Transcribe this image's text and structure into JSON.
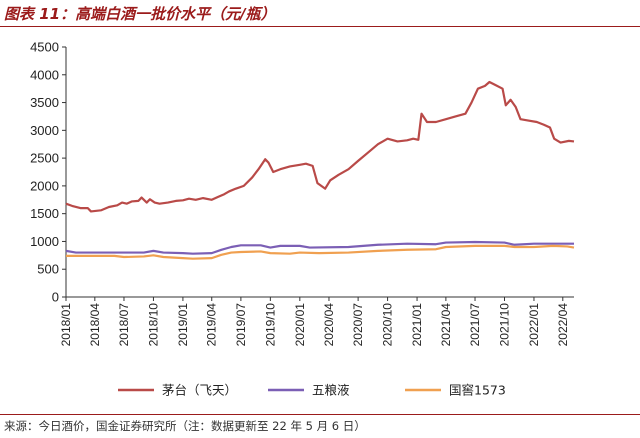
{
  "header": {
    "title": "图表 11：高端白酒一批价水平（元/瓶）"
  },
  "footer": {
    "source": "来源：今日酒价，国金证券研究所（注：数据更新至 22 年 5 月 6 日）"
  },
  "chart_data": {
    "type": "line",
    "title": "图表 11：高端白酒一批价水平（元/瓶）",
    "ylim": [
      0,
      4500
    ],
    "yticks": [
      0,
      500,
      1000,
      1500,
      2000,
      2500,
      3000,
      3500,
      4000,
      4500
    ],
    "xlim": [
      "2018-01-01",
      "2022-05-06"
    ],
    "xticks": [
      "2018/01",
      "2018/04",
      "2018/07",
      "2018/10",
      "2019/01",
      "2019/04",
      "2019/07",
      "2019/10",
      "2020/01",
      "2020/04",
      "2020/07",
      "2020/10",
      "2021/01",
      "2021/04",
      "2021/07",
      "2021/10",
      "2022/01",
      "2022/04"
    ],
    "legend": "bottom",
    "grid": false,
    "colors": {
      "series1": "#b94a48",
      "series2": "#7b5fb5",
      "series3": "#f0a050",
      "axis": "#333333",
      "accent": "#9b1b1b"
    },
    "series": [
      {
        "name": "茅台（飞天）",
        "points": [
          [
            "2018-01-01",
            1680
          ],
          [
            "2018-01-20",
            1640
          ],
          [
            "2018-02-15",
            1600
          ],
          [
            "2018-03-10",
            1600
          ],
          [
            "2018-03-20",
            1540
          ],
          [
            "2018-04-20",
            1560
          ],
          [
            "2018-05-15",
            1620
          ],
          [
            "2018-06-10",
            1650
          ],
          [
            "2018-06-25",
            1700
          ],
          [
            "2018-07-10",
            1680
          ],
          [
            "2018-07-25",
            1720
          ],
          [
            "2018-08-15",
            1730
          ],
          [
            "2018-08-25",
            1790
          ],
          [
            "2018-09-10",
            1700
          ],
          [
            "2018-09-20",
            1760
          ],
          [
            "2018-10-05",
            1700
          ],
          [
            "2018-10-20",
            1680
          ],
          [
            "2018-11-15",
            1700
          ],
          [
            "2018-12-10",
            1730
          ],
          [
            "2019-01-01",
            1740
          ],
          [
            "2019-01-20",
            1770
          ],
          [
            "2019-02-10",
            1750
          ],
          [
            "2019-03-05",
            1780
          ],
          [
            "2019-04-01",
            1750
          ],
          [
            "2019-04-20",
            1800
          ],
          [
            "2019-05-10",
            1850
          ],
          [
            "2019-05-25",
            1900
          ],
          [
            "2019-06-15",
            1950
          ],
          [
            "2019-07-10",
            2000
          ],
          [
            "2019-08-05",
            2150
          ],
          [
            "2019-08-25",
            2300
          ],
          [
            "2019-09-15",
            2480
          ],
          [
            "2019-09-25",
            2420
          ],
          [
            "2019-10-10",
            2250
          ],
          [
            "2019-11-01",
            2300
          ],
          [
            "2019-12-01",
            2350
          ],
          [
            "2020-01-01",
            2380
          ],
          [
            "2020-01-20",
            2400
          ],
          [
            "2020-02-10",
            2360
          ],
          [
            "2020-02-25",
            2050
          ],
          [
            "2020-03-20",
            1950
          ],
          [
            "2020-04-05",
            2100
          ],
          [
            "2020-05-01",
            2200
          ],
          [
            "2020-06-01",
            2300
          ],
          [
            "2020-07-01",
            2450
          ],
          [
            "2020-08-01",
            2600
          ],
          [
            "2020-09-01",
            2750
          ],
          [
            "2020-10-01",
            2850
          ],
          [
            "2020-11-01",
            2800
          ],
          [
            "2020-12-01",
            2820
          ],
          [
            "2020-12-20",
            2850
          ],
          [
            "2021-01-05",
            2830
          ],
          [
            "2021-01-15",
            3300
          ],
          [
            "2021-02-01",
            3150
          ],
          [
            "2021-03-01",
            3150
          ],
          [
            "2021-04-01",
            3200
          ],
          [
            "2021-05-01",
            3250
          ],
          [
            "2021-06-01",
            3300
          ],
          [
            "2021-06-20",
            3500
          ],
          [
            "2021-07-10",
            3750
          ],
          [
            "2021-08-01",
            3800
          ],
          [
            "2021-08-15",
            3870
          ],
          [
            "2021-09-01",
            3820
          ],
          [
            "2021-09-25",
            3750
          ],
          [
            "2021-10-05",
            3450
          ],
          [
            "2021-10-20",
            3550
          ],
          [
            "2021-11-05",
            3420
          ],
          [
            "2021-11-20",
            3200
          ],
          [
            "2021-12-10",
            3180
          ],
          [
            "2022-01-10",
            3150
          ],
          [
            "2022-02-01",
            3100
          ],
          [
            "2022-02-20",
            3050
          ],
          [
            "2022-03-05",
            2850
          ],
          [
            "2022-03-25",
            2780
          ],
          [
            "2022-04-20",
            2810
          ],
          [
            "2022-05-06",
            2800
          ]
        ]
      },
      {
        "name": "五粮液",
        "points": [
          [
            "2018-01-01",
            830
          ],
          [
            "2018-02-01",
            800
          ],
          [
            "2018-07-01",
            800
          ],
          [
            "2018-09-01",
            800
          ],
          [
            "2018-10-01",
            830
          ],
          [
            "2018-11-01",
            800
          ],
          [
            "2019-01-01",
            790
          ],
          [
            "2019-02-01",
            780
          ],
          [
            "2019-04-01",
            790
          ],
          [
            "2019-05-01",
            850
          ],
          [
            "2019-06-01",
            900
          ],
          [
            "2019-07-01",
            930
          ],
          [
            "2019-09-01",
            930
          ],
          [
            "2019-10-01",
            890
          ],
          [
            "2019-11-01",
            920
          ],
          [
            "2020-01-01",
            920
          ],
          [
            "2020-02-01",
            890
          ],
          [
            "2020-06-01",
            900
          ],
          [
            "2020-09-01",
            940
          ],
          [
            "2020-12-01",
            960
          ],
          [
            "2021-03-01",
            950
          ],
          [
            "2021-04-01",
            980
          ],
          [
            "2021-07-01",
            990
          ],
          [
            "2021-10-01",
            980
          ],
          [
            "2021-11-01",
            940
          ],
          [
            "2022-01-01",
            960
          ],
          [
            "2022-04-01",
            960
          ],
          [
            "2022-05-06",
            960
          ]
        ]
      },
      {
        "name": "国窖1573",
        "points": [
          [
            "2018-01-01",
            740
          ],
          [
            "2018-06-01",
            740
          ],
          [
            "2018-07-01",
            720
          ],
          [
            "2018-09-01",
            730
          ],
          [
            "2018-10-01",
            750
          ],
          [
            "2018-11-01",
            720
          ],
          [
            "2019-01-01",
            700
          ],
          [
            "2019-02-01",
            690
          ],
          [
            "2019-04-01",
            700
          ],
          [
            "2019-05-01",
            760
          ],
          [
            "2019-06-01",
            800
          ],
          [
            "2019-07-01",
            810
          ],
          [
            "2019-09-01",
            820
          ],
          [
            "2019-10-01",
            790
          ],
          [
            "2019-12-01",
            780
          ],
          [
            "2020-01-01",
            800
          ],
          [
            "2020-03-01",
            790
          ],
          [
            "2020-06-01",
            800
          ],
          [
            "2020-09-01",
            830
          ],
          [
            "2020-12-01",
            850
          ],
          [
            "2021-03-01",
            860
          ],
          [
            "2021-04-01",
            900
          ],
          [
            "2021-07-01",
            920
          ],
          [
            "2021-10-01",
            920
          ],
          [
            "2021-11-01",
            900
          ],
          [
            "2022-01-01",
            900
          ],
          [
            "2022-03-01",
            920
          ],
          [
            "2022-04-15",
            910
          ],
          [
            "2022-05-06",
            890
          ]
        ]
      }
    ]
  }
}
